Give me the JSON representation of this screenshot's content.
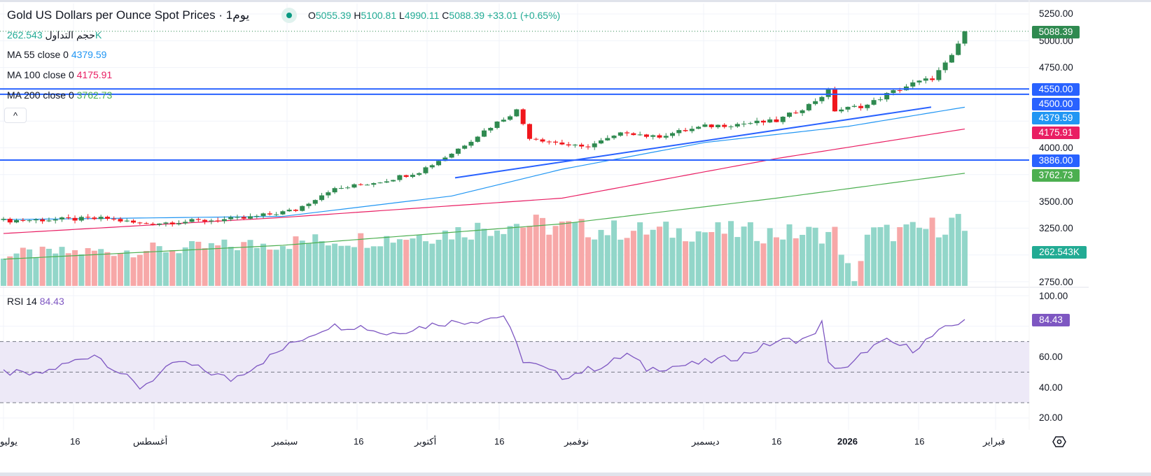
{
  "header": {
    "symbol_title": "Gold US Dollars per Ounce Spot Prices · 1يوم",
    "open_label": "O",
    "open": "5055.39",
    "high_label": "H",
    "high": "5100.81",
    "low_label": "L",
    "low": "4990.11",
    "close_label": "C",
    "close": "5088.39",
    "change": "+33.01 (+0.65%)"
  },
  "indicators": {
    "volume": {
      "label": "حجم التداول",
      "value": "262.543K"
    },
    "ma55": {
      "label": "MA  55 close 0",
      "value": "4379.59",
      "color": "#2196f3"
    },
    "ma100": {
      "label": "MA  100 close 0",
      "value": "4175.91",
      "color": "#e91e63"
    },
    "ma200": {
      "label": "MA  200 close 0",
      "value": "3762.73",
      "color": "#4caf50"
    },
    "rsi": {
      "label": "RSI  14",
      "value": "84.43",
      "color": "#7e57c2"
    }
  },
  "collapse_label": "^",
  "price_axis": [
    "5250.00",
    "5000.00",
    "4750.00",
    "4000.00",
    "3500.00",
    "3250.00",
    "2750.00"
  ],
  "rsi_axis": [
    "100.00",
    "60.00",
    "40.00",
    "20.00"
  ],
  "tags": {
    "last_price": "5088.39",
    "h1": "4550.00",
    "h2": "4500.00",
    "ma55": "4379.59",
    "ma100": "4175.91",
    "h3": "3886.00",
    "ma200": "3762.73",
    "volume": "262.543K",
    "rsi": "84.43"
  },
  "time_axis": [
    "يوليو",
    "16",
    "أغسطس",
    "سبتمبر",
    "16",
    "أكتوبر",
    "16",
    "نوفمبر",
    "ديسمبر",
    "16",
    "2026",
    "16",
    "فبراير"
  ],
  "colors": {
    "up": "#2f8a50",
    "down": "#f0161c",
    "vol_up": "#92d6c9",
    "vol_down": "#f7a8a8",
    "hline": "#2962ff"
  },
  "chart_data": {
    "type": "candlestick",
    "bars": 149,
    "price_range": [
      2750,
      5250
    ],
    "horizontal_levels": [
      4550,
      4500,
      3886
    ],
    "trendline": {
      "from": [
        70,
        3720
      ],
      "to": [
        144,
        4380
      ]
    },
    "close_path": [
      [
        0,
        3320
      ],
      [
        16,
        3340
      ],
      [
        21,
        3290
      ],
      [
        37,
        3340
      ],
      [
        45,
        3420
      ],
      [
        50,
        3600
      ],
      [
        59,
        3700
      ],
      [
        64,
        3780
      ],
      [
        69,
        3950
      ],
      [
        75,
        4200
      ],
      [
        79,
        4350
      ],
      [
        81,
        4100
      ],
      [
        85,
        4050
      ],
      [
        89,
        4000
      ],
      [
        93,
        4080
      ],
      [
        96,
        4150
      ],
      [
        100,
        4100
      ],
      [
        108,
        4200
      ],
      [
        119,
        4250
      ],
      [
        124,
        4400
      ],
      [
        127,
        4530
      ],
      [
        128,
        4350
      ],
      [
        133,
        4400
      ],
      [
        136,
        4500
      ],
      [
        140,
        4600
      ],
      [
        143,
        4650
      ],
      [
        146,
        4850
      ],
      [
        148,
        5088.39
      ]
    ],
    "ma55_path": [
      [
        0,
        3330
      ],
      [
        43,
        3360
      ],
      [
        69,
        3550
      ],
      [
        86,
        3800
      ],
      [
        108,
        4050
      ],
      [
        130,
        4200
      ],
      [
        148,
        4379.59
      ]
    ],
    "ma100_path": [
      [
        0,
        3200
      ],
      [
        43,
        3350
      ],
      [
        86,
        3530
      ],
      [
        119,
        3900
      ],
      [
        148,
        4175.91
      ]
    ],
    "ma200_path": [
      [
        0,
        2960
      ],
      [
        43,
        3090
      ],
      [
        86,
        3290
      ],
      [
        119,
        3530
      ],
      [
        148,
        3762.73
      ]
    ],
    "volume_path_k": [
      [
        0,
        150
      ],
      [
        20,
        170
      ],
      [
        30,
        180
      ],
      [
        45,
        210
      ],
      [
        60,
        230
      ],
      [
        70,
        260
      ],
      [
        78,
        300
      ],
      [
        90,
        270
      ],
      [
        100,
        260
      ],
      [
        110,
        260
      ],
      [
        120,
        250
      ],
      [
        128,
        250
      ],
      [
        131,
        20
      ],
      [
        133,
        250
      ],
      [
        140,
        260
      ],
      [
        146,
        300
      ],
      [
        147,
        340
      ],
      [
        148,
        262.543
      ]
    ],
    "rsi_path": [
      [
        0,
        50
      ],
      [
        5,
        48
      ],
      [
        14,
        62
      ],
      [
        21,
        40
      ],
      [
        27,
        57
      ],
      [
        35,
        45
      ],
      [
        45,
        70
      ],
      [
        50,
        80
      ],
      [
        55,
        80
      ],
      [
        59,
        75
      ],
      [
        67,
        82
      ],
      [
        73,
        84
      ],
      [
        77,
        87
      ],
      [
        80,
        58
      ],
      [
        86,
        47
      ],
      [
        93,
        55
      ],
      [
        96,
        62
      ],
      [
        99,
        52
      ],
      [
        106,
        55
      ],
      [
        113,
        60
      ],
      [
        119,
        70
      ],
      [
        124,
        72
      ],
      [
        126,
        82
      ],
      [
        127,
        55
      ],
      [
        130,
        52
      ],
      [
        133,
        65
      ],
      [
        136,
        70
      ],
      [
        140,
        65
      ],
      [
        144,
        76
      ],
      [
        148,
        84.43
      ]
    ],
    "rsi_levels": [
      70,
      50,
      30
    ]
  }
}
